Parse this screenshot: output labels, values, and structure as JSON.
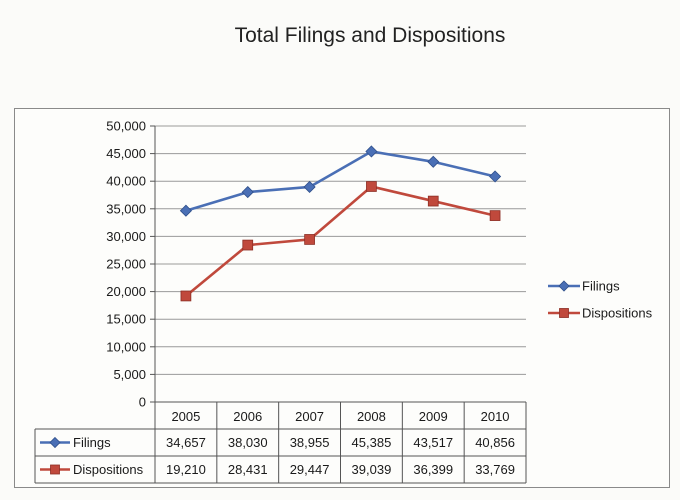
{
  "title": "Total Filings and Dispositions",
  "chart_data": {
    "type": "line",
    "title": "Total Filings and Dispositions",
    "categories": [
      "2005",
      "2006",
      "2007",
      "2008",
      "2009",
      "2010"
    ],
    "yticks": [
      "0",
      "5,000",
      "10,000",
      "15,000",
      "20,000",
      "25,000",
      "30,000",
      "35,000",
      "40,000",
      "45,000",
      "50,000"
    ],
    "ylim": [
      0,
      50000
    ],
    "grid": true,
    "legend_position": "right",
    "data_table": true,
    "series": [
      {
        "name": "Filings",
        "color": "#4a6fb5",
        "marker": "diamond",
        "values": [
          34657,
          38030,
          38955,
          45385,
          43517,
          40856
        ],
        "labels": [
          "34,657",
          "38,030",
          "38,955",
          "45,385",
          "43,517",
          "40,856"
        ]
      },
      {
        "name": "Dispositions",
        "color": "#c0493c",
        "marker": "square",
        "values": [
          19210,
          28431,
          29447,
          39039,
          36399,
          33769
        ],
        "labels": [
          "19,210",
          "28,431",
          "29,447",
          "39,039",
          "36,399",
          "33,769"
        ]
      }
    ]
  }
}
